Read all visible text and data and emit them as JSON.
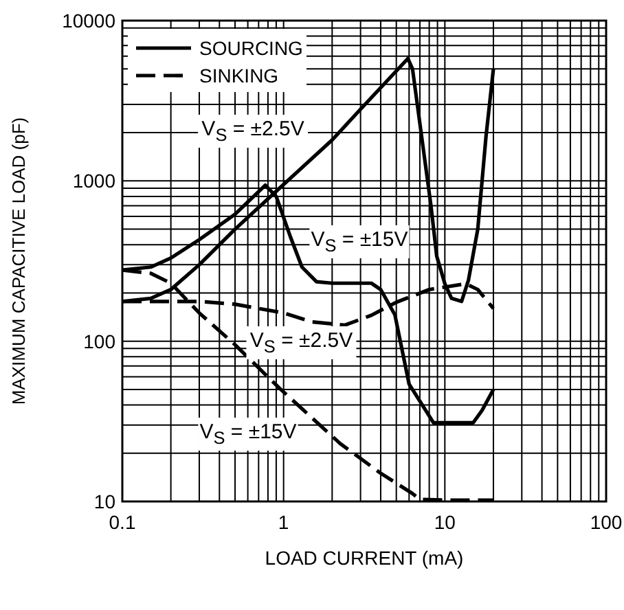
{
  "chart_data": {
    "type": "line",
    "xlabel": "LOAD CURRENT (mA)",
    "ylabel": "MAXIMUM CAPACITIVE LOAD (pF)",
    "log": "xy",
    "grid": true,
    "legend": "top left",
    "xlim": [
      0.1,
      100
    ],
    "xticks": [
      0.1,
      1,
      10,
      100
    ],
    "ylim": [
      10,
      10000
    ],
    "yticks": [
      10,
      100,
      1000,
      10000
    ],
    "series": [
      {
        "name": "SOURCING",
        "color": "#000000",
        "line_style": "solid",
        "x": [
          0.1,
          0.15,
          0.2,
          0.3,
          0.5,
          1,
          2,
          3,
          5.9,
          6.3,
          8.2,
          8.9,
          10,
          11,
          12.7,
          14,
          16,
          18,
          20
        ],
        "values": [
          177,
          185,
          210,
          300,
          500,
          950,
          1800,
          2800,
          5800,
          5000,
          700,
          340,
          228,
          185,
          177,
          240,
          500,
          1900,
          5000
        ]
      },
      {
        "color": "#000000",
        "line_style": "solid",
        "x": [
          0.1,
          0.15,
          0.2,
          0.3,
          0.5,
          0.77,
          0.9,
          1.1,
          1.3,
          1.6,
          2,
          3.5,
          4,
          4.9,
          6,
          8.5,
          10,
          15,
          17,
          20
        ],
        "values": [
          278,
          290,
          330,
          430,
          620,
          940,
          800,
          450,
          290,
          235,
          230,
          230,
          210,
          146,
          54,
          31,
          31,
          31,
          37,
          50
        ]
      },
      {
        "name": "SINKING",
        "color": "#000000",
        "line_style": "dashed",
        "x": [
          0.1,
          0.2,
          0.3,
          0.5,
          1,
          1.5,
          2.4,
          3.5,
          5,
          8,
          13.5,
          16,
          20
        ],
        "values": [
          177,
          177,
          177,
          170,
          150,
          132,
          126,
          145,
          175,
          210,
          228,
          210,
          160
        ]
      },
      {
        "color": "#000000",
        "line_style": "dashed",
        "x": [
          0.1,
          0.15,
          0.2,
          0.3,
          0.5,
          0.94,
          2.24,
          4,
          6.3,
          7,
          10,
          20
        ],
        "values": [
          278,
          265,
          230,
          150,
          95,
          51,
          23,
          15,
          11.2,
          10.3,
          10.2,
          10.2
        ]
      }
    ],
    "annotations": [
      "V$_{S}$ = ±2.5V",
      "V$_{S}$ = ±15V",
      "V$_{S}$ = ±2.5V",
      "V$_{S}$ = ±15V"
    ]
  }
}
